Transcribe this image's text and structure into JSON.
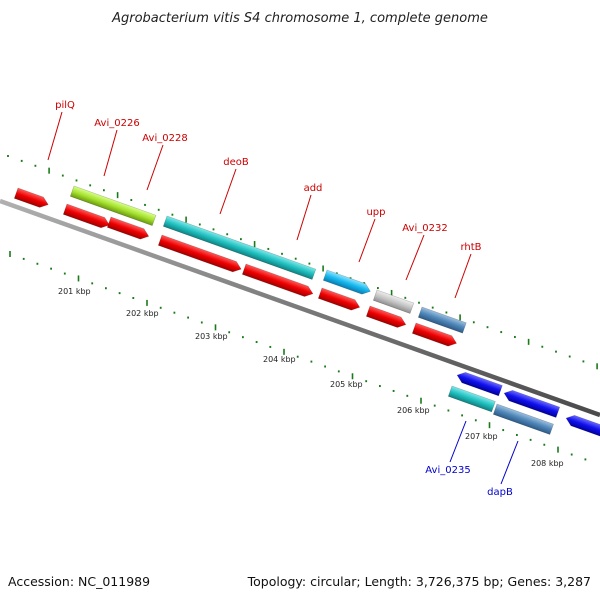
{
  "title": "Agrobacterium vitis S4 chromosome 1, complete genome",
  "footer": {
    "accession": "Accession: NC_011989",
    "summary": "Topology: circular; Length: 3,726,375 bp; Genes: 3,287"
  },
  "colors": {
    "label_top": "#cc0000",
    "label_bottom": "#0000cc",
    "tick": "#1a7a1a",
    "backbone": "#808080"
  },
  "tick_labels": [
    "201 kbp",
    "202 kbp",
    "203 kbp",
    "204 kbp",
    "205 kbp",
    "206 kbp",
    "207 kbp",
    "208 kbp"
  ],
  "gene_labels_top": [
    "pilQ",
    "Avi_0226",
    "Avi_0228",
    "deoB",
    "add",
    "upp",
    "Avi_0232",
    "rhtB"
  ],
  "gene_labels_bottom": [
    "Avi_0235",
    "dapB"
  ]
}
